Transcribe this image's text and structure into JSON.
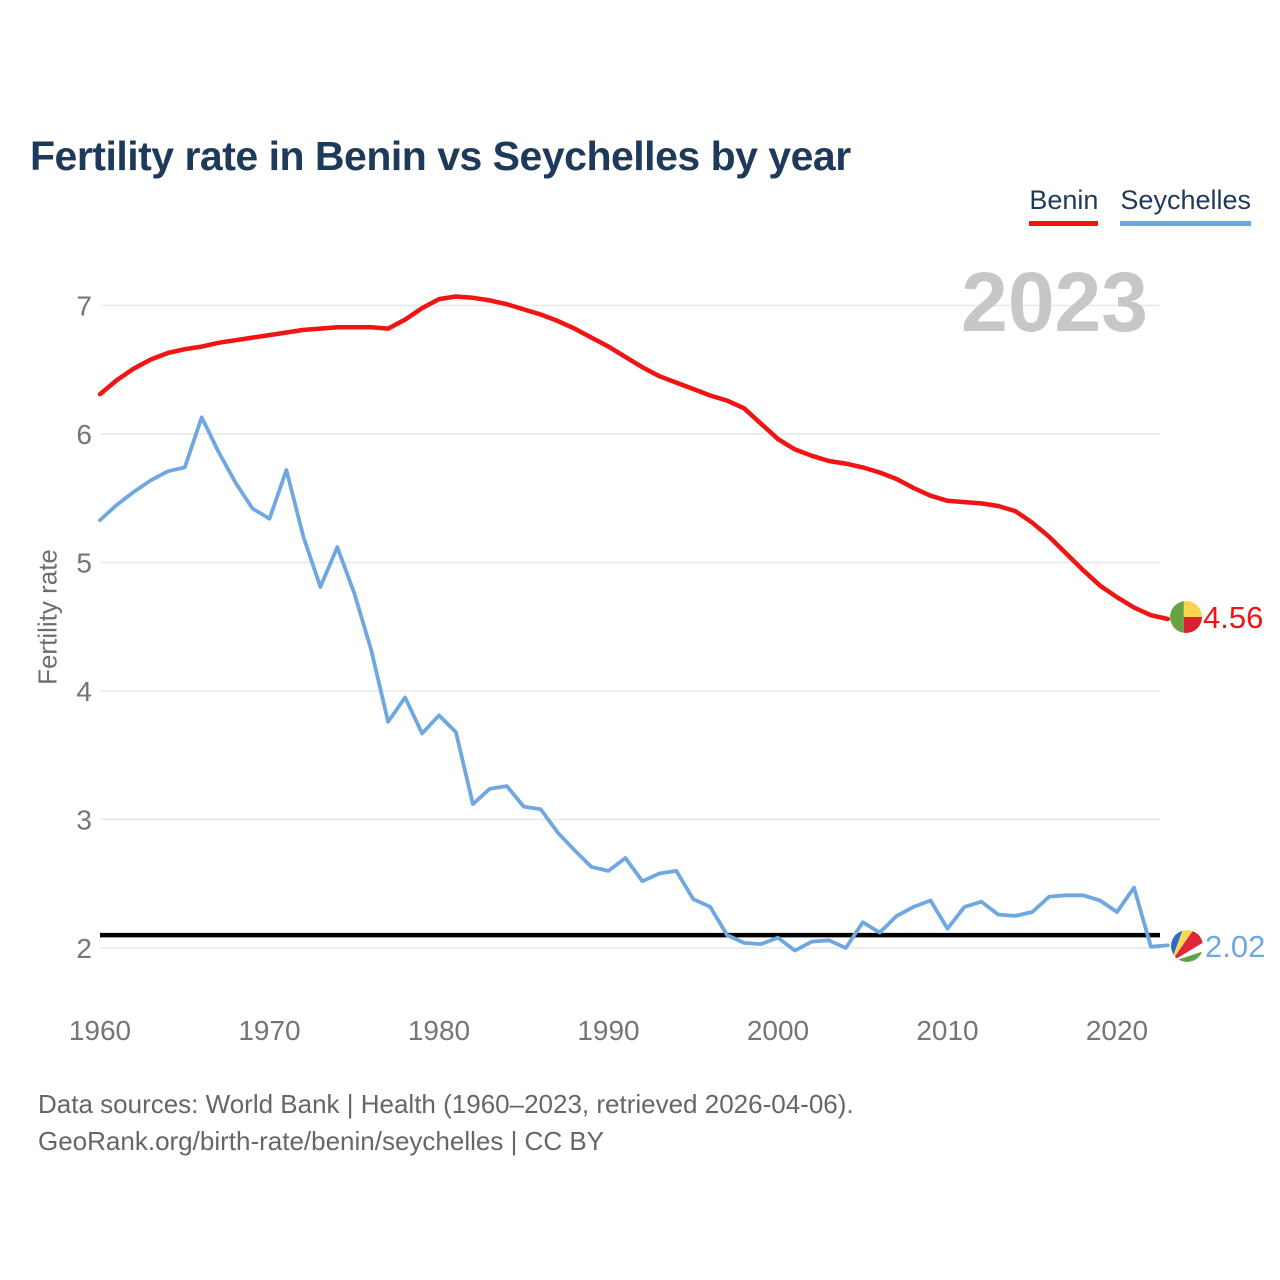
{
  "header": {
    "title": "Fertility rate in Benin vs Seychelles by year"
  },
  "footer": {
    "line1": "Data sources: World Bank | Health (1960–2023, retrieved 2026-04-06).",
    "line2": "GeoRank.org/birth-rate/benin/seychelles | CC BY"
  },
  "colors": {
    "benin_line": "#f01414",
    "seychelles_line": "#6fa8e0",
    "title_text": "#1e3a5a",
    "tick_text": "#757575",
    "watermark_text": "#c7c7c7",
    "reference_line": "#000000",
    "gridline": "#e8e8e8"
  },
  "chart_data": {
    "type": "line",
    "title": "Fertility rate in Benin vs Seychelles by year",
    "xlabel": "",
    "ylabel": "Fertility rate",
    "watermark": "2023",
    "x_start": 1960,
    "x_end": 2023,
    "xticks": [
      1960,
      1970,
      1980,
      1990,
      2000,
      2010,
      2020
    ],
    "yticks": [
      2,
      3,
      4,
      5,
      6,
      7
    ],
    "ylim": [
      2,
      7.3
    ],
    "grid": "horizontal",
    "legend_position": "top-right",
    "reference_line_y": 2.1,
    "series": [
      {
        "name": "Benin",
        "color": "#f01414",
        "end_label": "4.56",
        "values": [
          6.31,
          6.42,
          6.51,
          6.58,
          6.63,
          6.66,
          6.68,
          6.71,
          6.73,
          6.75,
          6.77,
          6.79,
          6.81,
          6.82,
          6.83,
          6.83,
          6.83,
          6.82,
          6.89,
          6.98,
          7.05,
          7.07,
          7.06,
          7.04,
          7.01,
          6.97,
          6.93,
          6.88,
          6.82,
          6.75,
          6.68,
          6.6,
          6.52,
          6.45,
          6.4,
          6.35,
          6.3,
          6.26,
          6.2,
          6.08,
          5.96,
          5.88,
          5.83,
          5.79,
          5.77,
          5.74,
          5.7,
          5.65,
          5.58,
          5.52,
          5.48,
          5.47,
          5.46,
          5.44,
          5.4,
          5.31,
          5.2,
          5.07,
          4.94,
          4.82,
          4.73,
          4.65,
          4.59,
          4.56
        ]
      },
      {
        "name": "Seychelles",
        "color": "#6fa8e0",
        "end_label": "2.02",
        "values": [
          5.33,
          5.45,
          5.55,
          5.64,
          5.71,
          5.74,
          6.13,
          5.86,
          5.62,
          5.42,
          5.34,
          5.72,
          5.2,
          4.81,
          5.12,
          4.76,
          4.32,
          3.76,
          3.95,
          3.67,
          3.81,
          3.68,
          3.12,
          3.24,
          3.26,
          3.1,
          3.08,
          2.9,
          2.76,
          2.63,
          2.6,
          2.7,
          2.52,
          2.58,
          2.6,
          2.38,
          2.32,
          2.1,
          2.04,
          2.03,
          2.08,
          1.98,
          2.05,
          2.06,
          2.0,
          2.2,
          2.12,
          2.25,
          2.32,
          2.37,
          2.15,
          2.32,
          2.36,
          2.26,
          2.25,
          2.28,
          2.4,
          2.41,
          2.41,
          2.37,
          2.28,
          2.47,
          2.01,
          2.02
        ]
      }
    ]
  }
}
